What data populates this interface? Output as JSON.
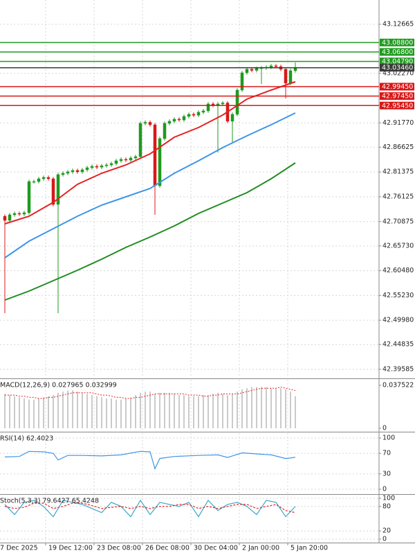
{
  "chart_data": [
    {
      "type": "candlestick",
      "open": [
        42.72,
        42.7113,
        42.7231,
        42.726,
        42.7245,
        42.7275,
        42.7935,
        42.7935,
        42.7994,
        42.8023,
        42.7994,
        42.7451,
        42.8082,
        42.8111,
        42.8141,
        42.817,
        42.8141,
        42.8185,
        42.8229,
        42.8258,
        42.824,
        42.827,
        42.8287,
        42.8317,
        42.8375,
        42.8405,
        42.839,
        42.8434,
        42.8463,
        42.9168,
        42.919,
        42.9138,
        42.7847,
        42.8845,
        42.9168,
        42.9212,
        42.9256,
        42.924,
        42.9315,
        42.9359,
        42.934,
        42.9403,
        42.9432,
        42.9579,
        42.9549,
        42.9579,
        42.96,
        42.9212,
        42.9359,
        42.9872,
        43.0239,
        43.0313,
        43.029,
        43.033,
        43.0342,
        43.0357,
        43.0386,
        43.037,
        43.0313,
        43.0019,
        43.0283
      ],
      "high": [
        42.724,
        42.7271,
        42.73,
        42.73,
        42.7315,
        42.7975,
        42.7975,
        42.8034,
        42.8063,
        42.8063,
        42.8034,
        42.8122,
        42.8151,
        42.8181,
        42.821,
        42.821,
        42.8225,
        42.8269,
        42.8298,
        42.8298,
        42.831,
        42.8327,
        42.8357,
        42.8415,
        42.8445,
        42.8445,
        42.8474,
        42.8503,
        42.9208,
        42.923,
        42.923,
        42.9178,
        42.8885,
        42.9208,
        42.9252,
        42.9296,
        42.9296,
        42.9355,
        42.9399,
        42.9399,
        42.9443,
        42.9472,
        42.9619,
        42.9619,
        42.9619,
        42.964,
        42.964,
        42.9399,
        42.9912,
        43.0279,
        43.0353,
        43.0353,
        43.037,
        43.0382,
        43.0397,
        43.0426,
        43.0426,
        43.041,
        43.0353,
        43.0323,
        43.0458
      ],
      "low": [
        42.5147,
        42.7073,
        42.7191,
        42.7205,
        42.7205,
        42.7235,
        42.7895,
        42.7895,
        42.7954,
        42.7954,
        42.7411,
        42.5147,
        42.8042,
        42.8071,
        42.8101,
        42.8101,
        42.8101,
        42.8145,
        42.8189,
        42.82,
        42.82,
        42.823,
        42.8247,
        42.8277,
        42.8335,
        42.835,
        42.835,
        42.8394,
        42.8423,
        42.9128,
        42.9098,
        42.7231,
        42.7807,
        42.8805,
        42.9128,
        42.9172,
        42.92,
        42.92,
        42.9275,
        42.93,
        42.93,
        42.9363,
        42.9392,
        42.9509,
        42.855,
        42.9539,
        42.9172,
        42.877,
        42.9319,
        42.9832,
        43.0199,
        43.025,
        43.025,
        43.0,
        43.0302,
        43.0317,
        43.033,
        43.0273,
        42.9693,
        42.9979,
        43.0243
      ],
      "close": [
        42.7113,
        42.7231,
        42.726,
        42.7245,
        42.7275,
        42.7935,
        42.7935,
        42.7994,
        42.8023,
        42.7994,
        42.7451,
        42.8082,
        42.8111,
        42.8141,
        42.817,
        42.8141,
        42.8185,
        42.8229,
        42.8258,
        42.824,
        42.827,
        42.8287,
        42.8317,
        42.8375,
        42.8405,
        42.839,
        42.8434,
        42.8463,
        42.9168,
        42.919,
        42.9138,
        42.7847,
        42.8845,
        42.9168,
        42.9212,
        42.9256,
        42.924,
        42.9315,
        42.9359,
        42.934,
        42.9403,
        42.9432,
        42.9579,
        42.9549,
        42.9579,
        42.96,
        42.9212,
        42.9359,
        42.9872,
        43.0239,
        43.0313,
        43.029,
        43.033,
        43.0342,
        43.0357,
        43.0386,
        43.037,
        43.0313,
        43.0019,
        43.0283,
        43.0346
      ],
      "up_color": "#1f9a1f",
      "down_color": "#d81818",
      "ylim": [
        42.3782,
        43.178
      ],
      "yticks": [
        43.12665,
        {
          "value": 43.0227,
          "label": "43.02270"
        },
        {
          "value": 42.9177,
          "label": "42.91770"
        },
        42.86625,
        42.81375,
        42.76125,
        42.70875,
        {
          "value": 42.6573,
          "label": "42.65730"
        },
        {
          "value": 42.6048,
          "label": "42.60480"
        },
        {
          "value": 42.5523,
          "label": "42.55230"
        },
        {
          "value": 42.4998,
          "label": "42.49980"
        },
        42.44835,
        42.39585
      ],
      "grid": true,
      "overlays": [
        {
          "color": "#e52222",
          "x": [
            0,
            5,
            10,
            15,
            20,
            25,
            30,
            35,
            40,
            45,
            50,
            55,
            60
          ],
          "values": [
            42.704,
            42.7201,
            42.7495,
            42.7876,
            42.8111,
            42.8287,
            42.8522,
            42.8874,
            42.908,
            42.9344,
            42.9681,
            42.9872,
            43.0048
          ]
        },
        {
          "color": "#3d95e8",
          "x": [
            0,
            5,
            10,
            15,
            20,
            25,
            30,
            35,
            40,
            45,
            50,
            55,
            60
          ],
          "values": [
            42.6321,
            42.6673,
            42.6937,
            42.7201,
            42.7436,
            42.7612,
            42.7788,
            42.8111,
            42.8375,
            42.8654,
            42.8904,
            42.9138,
            42.9388
          ]
        },
        {
          "color": "#1e8c1e",
          "x": [
            0,
            5,
            10,
            15,
            20,
            25,
            30,
            35,
            40,
            45,
            50,
            55,
            60
          ],
          "values": [
            42.5425,
            42.5616,
            42.5836,
            42.6057,
            42.6291,
            42.6541,
            42.6761,
            42.6996,
            42.726,
            42.748,
            42.77,
            42.7994,
            42.8331
          ]
        }
      ],
      "levels": [
        {
          "value": 43.088,
          "label": "43.08800",
          "color": "#1f9a1f"
        },
        {
          "value": 43.068,
          "label": "43.06800",
          "color": "#1f9a1f"
        },
        {
          "value": 43.0479,
          "label": "43.04790",
          "color": "#1f9a1f"
        },
        {
          "value": 43.0346,
          "label": "43.03460",
          "color": "#3a3a3a"
        },
        {
          "value": 42.9945,
          "label": "42.99450",
          "color": "#d81818"
        },
        {
          "value": 42.9745,
          "label": "42.97450",
          "color": "#d81818"
        },
        {
          "value": 42.9545,
          "label": "42.95450",
          "color": "#d81818"
        }
      ]
    },
    {
      "type": "macd",
      "title": "MACD(12,26,9) 0.027965 0.032999",
      "values": [
        0.03,
        0.029,
        0.028,
        0.027,
        0.026,
        0.025,
        0.025,
        0.026,
        0.027,
        0.028,
        0.029,
        0.031,
        0.032,
        0.033,
        0.033,
        0.032,
        0.031,
        0.03,
        0.029,
        0.028,
        0.027,
        0.026,
        0.026,
        0.025,
        0.025,
        0.026,
        0.027,
        0.029,
        0.031,
        0.032,
        0.032,
        0.03,
        0.031,
        0.031,
        0.031,
        0.03,
        0.029,
        0.029,
        0.028,
        0.028,
        0.028,
        0.029,
        0.029,
        0.03,
        0.031,
        0.03,
        0.029,
        0.03,
        0.032,
        0.034,
        0.035,
        0.036,
        0.036,
        0.036,
        0.036,
        0.035,
        0.035,
        0.035,
        0.034,
        0.032,
        0.028
      ],
      "signal": [
        0.029,
        0.029,
        0.029,
        0.028,
        0.028,
        0.027,
        0.027,
        0.026,
        0.026,
        0.027,
        0.027,
        0.028,
        0.029,
        0.03,
        0.031,
        0.031,
        0.031,
        0.031,
        0.031,
        0.03,
        0.029,
        0.029,
        0.028,
        0.027,
        0.027,
        0.026,
        0.026,
        0.027,
        0.027,
        0.028,
        0.029,
        0.03,
        0.03,
        0.03,
        0.03,
        0.03,
        0.03,
        0.03,
        0.029,
        0.029,
        0.029,
        0.028,
        0.028,
        0.029,
        0.029,
        0.03,
        0.03,
        0.03,
        0.03,
        0.031,
        0.032,
        0.033,
        0.034,
        0.035,
        0.035,
        0.035,
        0.035,
        0.036,
        0.035,
        0.034,
        0.033
      ],
      "bar_color": "#b8b8b8",
      "signal_color": "#e52222",
      "ylim": [
        -0.00242,
        0.04236
      ],
      "yticks": [
        0.037522,
        0
      ]
    },
    {
      "type": "line",
      "title": "RSI(14) 62.4023",
      "x": [
        0,
        3,
        5,
        8,
        10,
        11,
        13,
        16,
        20,
        24,
        28,
        30,
        31,
        32,
        35,
        40,
        44,
        46,
        47,
        49,
        52,
        55,
        58,
        59,
        60
      ],
      "series": [
        {
          "color": "#3d95e8",
          "values": [
            63,
            64,
            74,
            73,
            70,
            57,
            66,
            66,
            65,
            67,
            74,
            73,
            40,
            60,
            64,
            66,
            67,
            62,
            65,
            71,
            69,
            67,
            60,
            61,
            62.4
          ]
        }
      ],
      "ylim": [
        -8.1,
        109.5
      ],
      "yticks": [
        100,
        70,
        30,
        0
      ]
    },
    {
      "type": "line",
      "title": "Stoch(5,3,3) 79.6427 65.4248",
      "x": [
        0,
        2,
        4,
        6,
        8,
        10,
        12,
        14,
        16,
        18,
        20,
        22,
        24,
        26,
        28,
        30,
        32,
        34,
        36,
        38,
        40,
        42,
        44,
        46,
        48,
        50,
        52,
        54,
        56,
        58,
        60
      ],
      "series": [
        {
          "color": "#3aa8c8",
          "values": [
            85,
            60,
            90,
            95,
            80,
            55,
            95,
            90,
            85,
            75,
            65,
            90,
            80,
            55,
            95,
            60,
            90,
            85,
            80,
            90,
            55,
            95,
            70,
            85,
            90,
            80,
            60,
            95,
            90,
            55,
            80
          ]
        },
        {
          "color": "#e52222",
          "dashed": true,
          "values": [
            80,
            75,
            78,
            88,
            88,
            75,
            80,
            88,
            88,
            82,
            75,
            78,
            80,
            75,
            80,
            75,
            80,
            80,
            85,
            85,
            75,
            80,
            75,
            80,
            85,
            85,
            75,
            80,
            85,
            70,
            65
          ]
        }
      ],
      "ylim": [
        -6.8,
        106.8
      ],
      "yticks": [
        100,
        80,
        20,
        0
      ],
      "x_labels": [
        "7 Dec 2025",
        "19 Dec 12:00",
        "23 Dec 08:00",
        "26 Dec 08:00",
        "30 Dec 04:00",
        "2 Jan 00:00",
        "5 Jan 20:00"
      ]
    }
  ]
}
